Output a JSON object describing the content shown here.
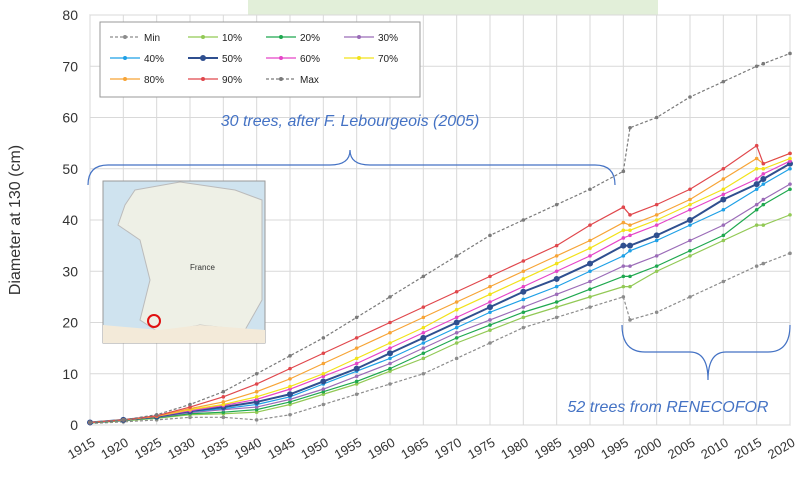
{
  "chart_data": {
    "type": "line",
    "y_label": "Diameter at 130 (cm)",
    "annotations": [
      "30 trees, after F. Lebourgeois (2005)",
      "52 trees from RENECOFOR"
    ],
    "map_label": "France",
    "x": [
      1915,
      1920,
      1925,
      1930,
      1935,
      1940,
      1945,
      1950,
      1955,
      1960,
      1965,
      1970,
      1975,
      1980,
      1985,
      1990,
      1995,
      1996,
      2000,
      2005,
      2010,
      2015,
      2016,
      2020
    ],
    "xlim": [
      1915,
      2020
    ],
    "xticks": [
      1915,
      1920,
      1925,
      1930,
      1935,
      1940,
      1945,
      1950,
      1955,
      1960,
      1965,
      1970,
      1975,
      1980,
      1985,
      1990,
      1995,
      2000,
      2005,
      2010,
      2015,
      2020
    ],
    "ylim": [
      0,
      80
    ],
    "yticks": [
      0,
      10,
      20,
      30,
      40,
      50,
      60,
      70,
      80
    ],
    "grid": true,
    "legend": "top-left",
    "series": [
      {
        "name": "Min",
        "color": "#8c8c8c",
        "values": [
          0.3,
          0.6,
          1,
          1.5,
          1.5,
          1,
          2,
          4,
          6,
          8,
          10,
          13,
          16,
          19,
          21,
          23,
          25,
          20.5,
          22,
          25,
          28,
          31,
          31.5,
          33.5
        ]
      },
      {
        "name": "10%",
        "color": "#92c955",
        "values": [
          0.4,
          0.8,
          1.3,
          2,
          2.2,
          2.5,
          4,
          6,
          8,
          10.5,
          13,
          16,
          18.5,
          21,
          23,
          25,
          27,
          27,
          30,
          33,
          36,
          39,
          39,
          41
        ]
      },
      {
        "name": "20%",
        "color": "#1fa84f",
        "values": [
          0.4,
          0.9,
          1.4,
          2.2,
          2.5,
          3,
          4.5,
          6.5,
          8.5,
          11,
          14,
          17,
          19.5,
          22,
          24,
          26.5,
          29,
          29,
          31,
          34,
          37,
          42,
          43,
          46
        ]
      },
      {
        "name": "30%",
        "color": "#9b6cb8",
        "values": [
          0.5,
          0.9,
          1.5,
          2.4,
          3,
          3.5,
          5,
          7,
          9.5,
          12,
          15,
          18,
          20.5,
          23,
          25.5,
          28,
          31,
          31,
          33,
          36,
          39,
          43,
          44,
          47
        ]
      },
      {
        "name": "40%",
        "color": "#1ea0e6",
        "values": [
          0.5,
          1,
          1.6,
          2.6,
          3.2,
          4,
          5.5,
          8,
          10.5,
          13,
          16,
          19,
          22,
          24.5,
          27,
          30,
          33,
          34,
          36,
          39,
          42,
          46,
          47,
          50
        ]
      },
      {
        "name": "50%",
        "color": "#2f4f8f",
        "values": [
          0.5,
          1,
          1.6,
          2.7,
          3.5,
          4.5,
          6,
          8.5,
          11,
          14,
          17,
          20,
          23,
          26,
          28.5,
          31.5,
          35,
          35,
          37,
          40,
          44,
          47,
          48,
          51
        ]
      },
      {
        "name": "60%",
        "color": "#e545c8",
        "values": [
          0.5,
          1,
          1.7,
          2.8,
          3.8,
          5,
          7,
          9.5,
          12,
          15,
          18,
          21,
          24,
          27,
          30,
          33,
          36.5,
          37,
          39,
          42,
          45,
          48,
          49,
          51.5
        ]
      },
      {
        "name": "70%",
        "color": "#f2e21a",
        "values": [
          0.5,
          1,
          1.7,
          3,
          4,
          5.5,
          7.5,
          10,
          13,
          16,
          19,
          22.5,
          25.5,
          28.5,
          31.5,
          34.5,
          38,
          38,
          40,
          43,
          46,
          50,
          50,
          52
        ]
      },
      {
        "name": "80%",
        "color": "#f7a436",
        "values": [
          0.5,
          1,
          1.7,
          3.2,
          4.5,
          6.5,
          9,
          12,
          15,
          18,
          21,
          24,
          27,
          30,
          33,
          36,
          39.5,
          39,
          41,
          44,
          48,
          52,
          51,
          53
        ]
      },
      {
        "name": "90%",
        "color": "#e0474c",
        "values": [
          0.5,
          1,
          1.8,
          3.5,
          5.5,
          8,
          11,
          14,
          17,
          20,
          23,
          26,
          29,
          32,
          35,
          39,
          42.5,
          41,
          43,
          46,
          50,
          54.5,
          51,
          53
        ]
      },
      {
        "name": "Max",
        "color": "#7a7a7a",
        "values": [
          0.5,
          1,
          2,
          4,
          6.5,
          10,
          13.5,
          17,
          21,
          25,
          29,
          33,
          37,
          40,
          43,
          46,
          49.5,
          58,
          60,
          64,
          67,
          70,
          70.5,
          72.5
        ]
      }
    ]
  }
}
